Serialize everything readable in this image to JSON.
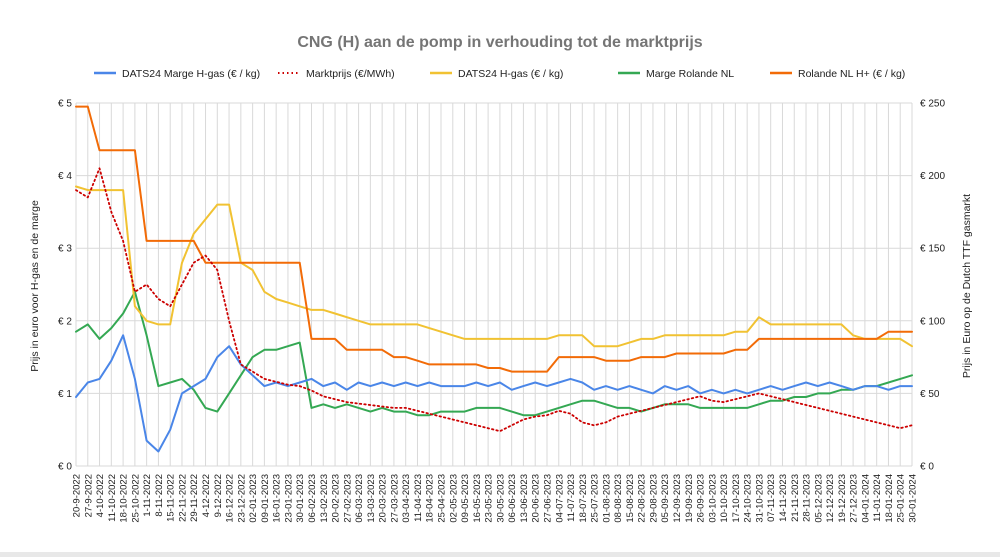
{
  "chart_data": {
    "type": "line",
    "title": "CNG (H) aan de pomp in verhouding tot de marktprijs",
    "ylabel_left": "Prijs in euro voor H-gas en de marge",
    "ylabel_right": "Prijs in Euro op de Dutch TTF gasmarkt",
    "ylim_left": [
      0,
      5
    ],
    "ylim_right": [
      0,
      250
    ],
    "y_ticks_left": [
      "€ 0",
      "€ 1",
      "€ 2",
      "€ 3",
      "€ 4",
      "€ 5"
    ],
    "y_ticks_right": [
      "€ 0",
      "€ 50",
      "€ 100",
      "€ 150",
      "€ 200",
      "€ 250"
    ],
    "grid": true,
    "legend_position": "top",
    "x_ticks": [
      "20-9-2022",
      "27-9-2022",
      "4-10-2022",
      "11-10-2022",
      "18-10-2022",
      "25-10-2022",
      "1-11-2022",
      "8-11-2022",
      "15-11-2022",
      "22-11-2022",
      "29-11-2022",
      "4-12-2022",
      "9-12-2022",
      "16-12-2022",
      "23-12-2022",
      "02-01-2023",
      "09-01-2023",
      "16-01-2023",
      "23-01-2023",
      "30-01-2023",
      "06-02-2023",
      "13-02-2023",
      "20-02-2023",
      "27-02-2023",
      "06-03-2023",
      "13-03-2023",
      "20-03-2023",
      "27-03-2023",
      "03-04-2023",
      "11-04-2023",
      "18-04-2023",
      "25-04-2023",
      "02-05-2023",
      "09-05-2023",
      "16-05-2023",
      "23-05-2023",
      "30-05-2023",
      "06-06-2023",
      "13-06-2023",
      "20-06-2023",
      "27-06-2023",
      "04-07-2023",
      "11-07-2023",
      "18-07-2023",
      "25-07-2023",
      "01-08-2023",
      "08-08-2023",
      "15-08-2023",
      "22-08-2023",
      "29-08-2023",
      "05-09-2023",
      "12-09-2023",
      "19-09-2023",
      "26-09-2023",
      "03-10-2023",
      "10-10-2023",
      "17-10-2023",
      "24-10-2023",
      "31-10-2023",
      "07-11-2023",
      "14-11-2023",
      "21-11-2023",
      "28-11-2023",
      "05-12-2023",
      "12-12-2023",
      "19-12-2023",
      "27-12-2023",
      "04-01-2024",
      "11-01-2024",
      "18-01-2024",
      "25-01-2024",
      "30-01-2024"
    ],
    "x": [
      0,
      1,
      2,
      3,
      4,
      5,
      6,
      7,
      8,
      9,
      10,
      11,
      12,
      13,
      14,
      15,
      16,
      17,
      18,
      19,
      20,
      21,
      22,
      23,
      24,
      25,
      26,
      27,
      28,
      29,
      30,
      31,
      32,
      33,
      34,
      35,
      36,
      37,
      38,
      39,
      40,
      41,
      42,
      43,
      44,
      45,
      46,
      47,
      48,
      49,
      50,
      51,
      52,
      53,
      54,
      55,
      56,
      57,
      58,
      59,
      60,
      61,
      62,
      63,
      64,
      65,
      66,
      67,
      68,
      69,
      70,
      71
    ],
    "series": [
      {
        "name": "DATS24 Marge H-gas (€ / kg)",
        "color": "#4a86e8",
        "axis": "left",
        "dash": "solid",
        "values": [
          0.95,
          1.15,
          1.2,
          1.45,
          1.8,
          1.2,
          0.35,
          0.2,
          0.5,
          1.0,
          1.1,
          1.2,
          1.5,
          1.65,
          1.4,
          1.25,
          1.1,
          1.15,
          1.1,
          1.15,
          1.2,
          1.1,
          1.15,
          1.05,
          1.15,
          1.1,
          1.15,
          1.1,
          1.15,
          1.1,
          1.15,
          1.1,
          1.1,
          1.1,
          1.15,
          1.1,
          1.15,
          1.05,
          1.1,
          1.15,
          1.1,
          1.15,
          1.2,
          1.15,
          1.05,
          1.1,
          1.05,
          1.1,
          1.05,
          1.0,
          1.1,
          1.05,
          1.1,
          1.0,
          1.05,
          1.0,
          1.05,
          1.0,
          1.05,
          1.1,
          1.05,
          1.1,
          1.15,
          1.1,
          1.15,
          1.1,
          1.05,
          1.1,
          1.1,
          1.05,
          1.1,
          1.1
        ]
      },
      {
        "name": "Marktprijs (€/MWh)",
        "color": "#cc0000",
        "axis": "right",
        "dash": "dotted",
        "values": [
          190,
          185,
          205,
          175,
          155,
          120,
          125,
          115,
          110,
          125,
          140,
          145,
          135,
          100,
          70,
          65,
          60,
          58,
          56,
          55,
          52,
          48,
          46,
          44,
          43,
          42,
          41,
          40,
          40,
          38,
          36,
          34,
          32,
          30,
          28,
          26,
          24,
          28,
          32,
          34,
          35,
          38,
          36,
          30,
          28,
          30,
          34,
          36,
          38,
          40,
          42,
          44,
          46,
          48,
          45,
          44,
          46,
          48,
          50,
          48,
          46,
          44,
          42,
          40,
          38,
          36,
          34,
          32,
          30,
          28,
          26,
          28
        ]
      },
      {
        "name": "DATS24 H-gas (€ / kg)",
        "color": "#f1c232",
        "axis": "left",
        "dash": "solid",
        "values": [
          3.85,
          3.8,
          3.8,
          3.8,
          3.8,
          2.2,
          2.0,
          1.95,
          1.95,
          2.8,
          3.2,
          3.4,
          3.6,
          3.6,
          2.8,
          2.7,
          2.4,
          2.3,
          2.25,
          2.2,
          2.15,
          2.15,
          2.1,
          2.05,
          2.0,
          1.95,
          1.95,
          1.95,
          1.95,
          1.95,
          1.9,
          1.85,
          1.8,
          1.75,
          1.75,
          1.75,
          1.75,
          1.75,
          1.75,
          1.75,
          1.75,
          1.8,
          1.8,
          1.8,
          1.65,
          1.65,
          1.65,
          1.7,
          1.75,
          1.75,
          1.8,
          1.8,
          1.8,
          1.8,
          1.8,
          1.8,
          1.85,
          1.85,
          2.05,
          1.95,
          1.95,
          1.95,
          1.95,
          1.95,
          1.95,
          1.95,
          1.8,
          1.75,
          1.75,
          1.75,
          1.75,
          1.65
        ]
      },
      {
        "name": "Marge Rolande NL",
        "color": "#34a853",
        "axis": "left",
        "dash": "solid",
        "values": [
          1.85,
          1.95,
          1.75,
          1.9,
          2.1,
          2.4,
          1.8,
          1.1,
          1.15,
          1.2,
          1.05,
          0.8,
          0.75,
          1.0,
          1.25,
          1.5,
          1.6,
          1.6,
          1.65,
          1.7,
          0.8,
          0.85,
          0.8,
          0.85,
          0.8,
          0.75,
          0.8,
          0.75,
          0.75,
          0.7,
          0.7,
          0.75,
          0.75,
          0.75,
          0.8,
          0.8,
          0.8,
          0.75,
          0.7,
          0.7,
          0.75,
          0.8,
          0.85,
          0.9,
          0.9,
          0.85,
          0.8,
          0.8,
          0.75,
          0.8,
          0.85,
          0.85,
          0.85,
          0.8,
          0.8,
          0.8,
          0.8,
          0.8,
          0.85,
          0.9,
          0.9,
          0.95,
          0.95,
          1.0,
          1.0,
          1.05,
          1.05,
          1.1,
          1.1,
          1.15,
          1.2,
          1.25
        ]
      },
      {
        "name": "Rolande NL H+ (€ / kg)",
        "color": "#f26b07",
        "axis": "left",
        "dash": "solid",
        "values": [
          4.95,
          4.95,
          4.35,
          4.35,
          4.35,
          4.35,
          3.1,
          3.1,
          3.1,
          3.1,
          3.1,
          2.8,
          2.8,
          2.8,
          2.8,
          2.8,
          2.8,
          2.8,
          2.8,
          2.8,
          1.75,
          1.75,
          1.75,
          1.6,
          1.6,
          1.6,
          1.6,
          1.5,
          1.5,
          1.45,
          1.4,
          1.4,
          1.4,
          1.4,
          1.4,
          1.35,
          1.35,
          1.3,
          1.3,
          1.3,
          1.3,
          1.5,
          1.5,
          1.5,
          1.5,
          1.45,
          1.45,
          1.45,
          1.5,
          1.5,
          1.5,
          1.55,
          1.55,
          1.55,
          1.55,
          1.55,
          1.6,
          1.6,
          1.75,
          1.75,
          1.75,
          1.75,
          1.75,
          1.75,
          1.75,
          1.75,
          1.75,
          1.75,
          1.75,
          1.85,
          1.85,
          1.85
        ]
      }
    ]
  }
}
